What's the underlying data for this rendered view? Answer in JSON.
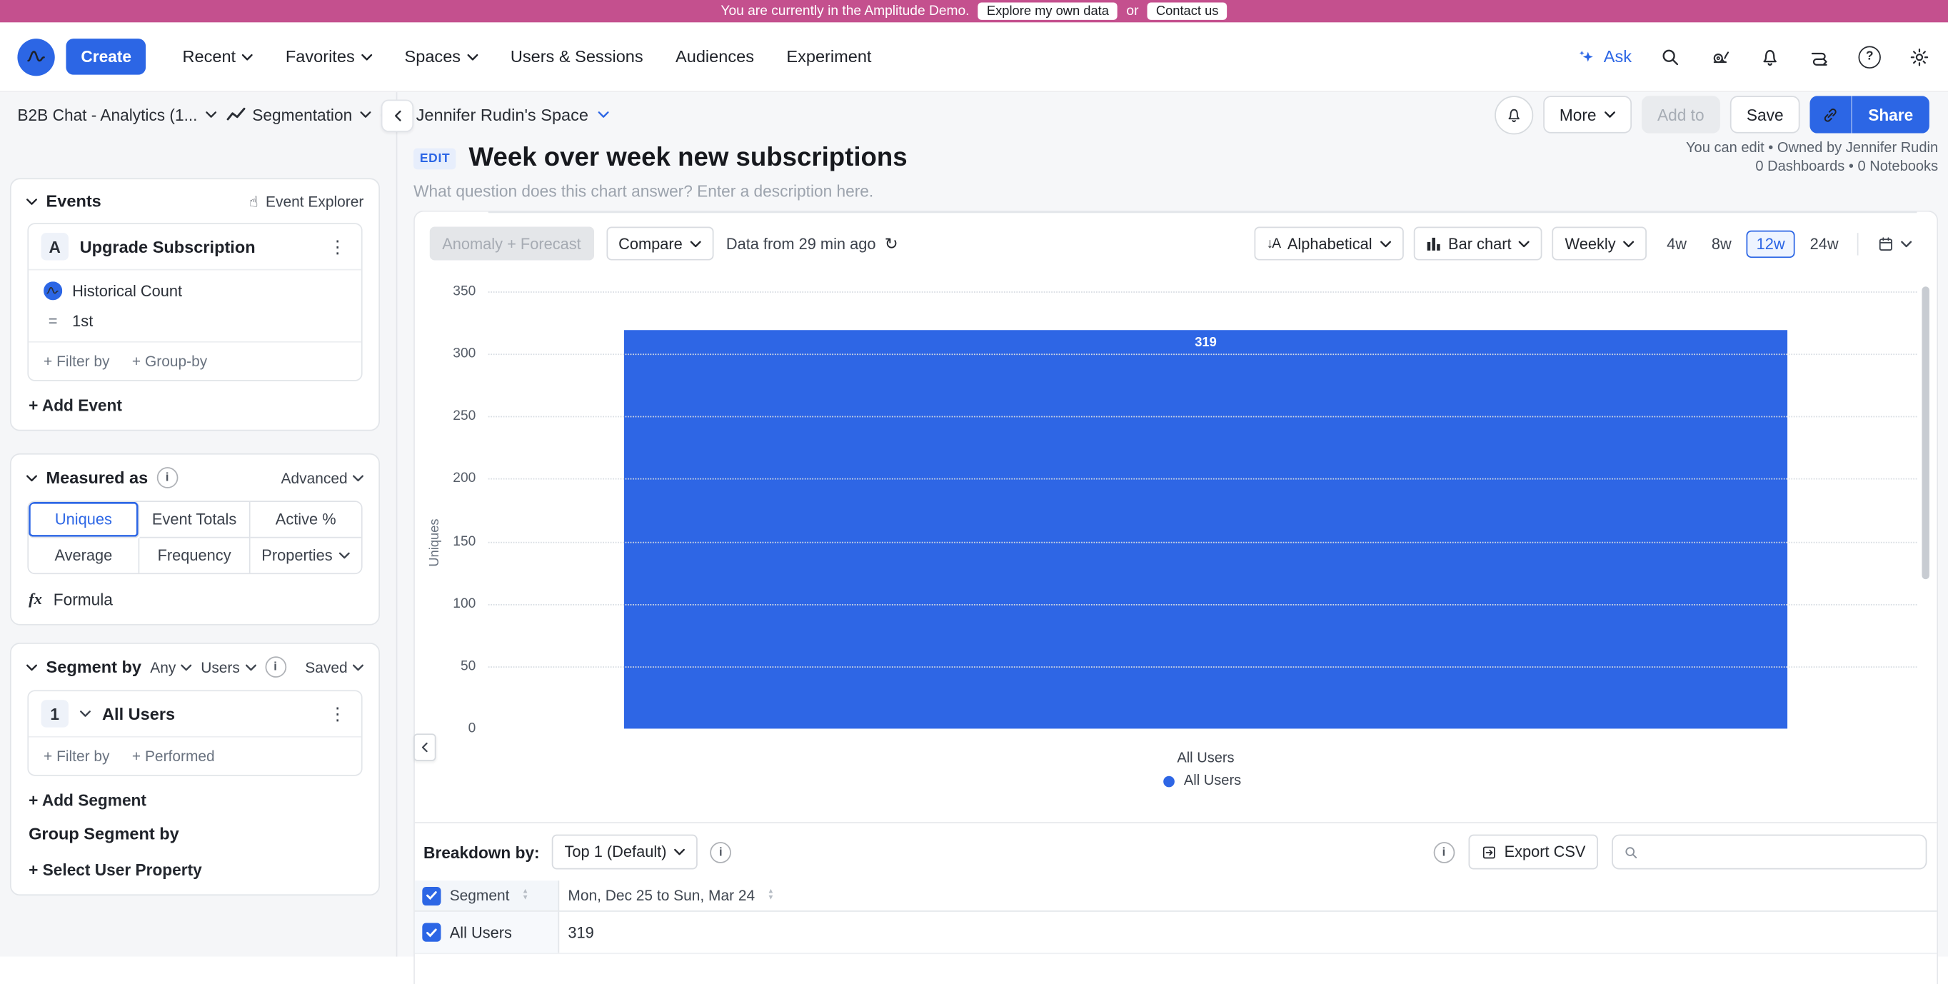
{
  "banner": {
    "text": "You are currently in the Amplitude Demo.",
    "explore_button": "Explore my own data",
    "or_text": "or",
    "contact_button": "Contact us"
  },
  "topnav": {
    "create_label": "Create",
    "items": [
      "Recent",
      "Favorites",
      "Spaces",
      "Users & Sessions",
      "Audiences",
      "Experiment"
    ],
    "ask_label": "Ask"
  },
  "toolbar": {
    "chart_picker": "B2B Chat - Analytics (1...",
    "chart_type": "Segmentation",
    "space_name": "Jennifer Rudin's Space",
    "more_label": "More",
    "add_to_label": "Add to",
    "save_label": "Save",
    "share_label": "Share"
  },
  "header": {
    "edit_badge": "EDIT",
    "title": "Week over week new subscriptions",
    "description_placeholder": "What question does this chart answer? Enter a description here.",
    "permissions": "You can edit • Owned by Jennifer Rudin",
    "counts": "0 Dashboards • 0 Notebooks"
  },
  "sidebar": {
    "events": {
      "title": "Events",
      "explorer_label": "Event Explorer",
      "event": {
        "letter": "A",
        "name": "Upgrade Subscription",
        "metric": "Historical Count",
        "operator": "=",
        "value": "1st",
        "filter_by": "+ Filter by",
        "group_by": "+ Group-by"
      },
      "add_event": "+ Add Event"
    },
    "measured_as": {
      "title": "Measured as",
      "advanced_label": "Advanced",
      "options": [
        "Uniques",
        "Event Totals",
        "Active %",
        "Average",
        "Frequency",
        "Properties"
      ],
      "selected": "Uniques",
      "formula_label": "Formula"
    },
    "segment_by": {
      "title": "Segment by",
      "any_label": "Any",
      "users_label": "Users",
      "saved_label": "Saved",
      "segment": {
        "number": "1",
        "name": "All Users",
        "filter_by": "+ Filter by",
        "performed": "+ Performed"
      },
      "add_segment": "+ Add Segment",
      "group_segment_by": "Group Segment by",
      "select_user_property": "+ Select User Property"
    }
  },
  "chart_toolbar": {
    "anomaly_label": "Anomaly + Forecast",
    "compare_label": "Compare",
    "data_freshness": "Data from 29 min ago",
    "sort_label": "Alphabetical",
    "chart_type_label": "Bar chart",
    "interval_label": "Weekly",
    "ranges": [
      "4w",
      "8w",
      "12w",
      "24w"
    ],
    "selected_range": "12w"
  },
  "chart_data": {
    "type": "bar",
    "title": "Week over week new subscriptions",
    "categories": [
      "All Users"
    ],
    "values": [
      319
    ],
    "series": [
      {
        "name": "All Users",
        "values": [
          319
        ]
      }
    ],
    "bar_label": "319",
    "xlabel": "",
    "ylabel": "Uniques",
    "ylim": [
      0,
      350
    ],
    "y_ticks": [
      350,
      300,
      250,
      200,
      150,
      100,
      50,
      0
    ],
    "grid": "horizontal-dotted",
    "bar_color": "#2e66e5",
    "legend": [
      {
        "label": "All Users",
        "color": "#2e66e5"
      }
    ],
    "legend_position": "bottom"
  },
  "breakdown": {
    "label": "Breakdown by:",
    "top_selector": "Top 1 (Default)",
    "export_label": "Export CSV",
    "search_placeholder": "",
    "table": {
      "columns": [
        "Segment",
        "Mon, Dec 25 to Sun, Mar 24"
      ],
      "rows": [
        {
          "segment": "All Users",
          "value": "319",
          "checked": true
        }
      ]
    }
  },
  "colors": {
    "accent": "#2c66e5",
    "banner": "#c4508e",
    "bar": "#2e66e5"
  }
}
